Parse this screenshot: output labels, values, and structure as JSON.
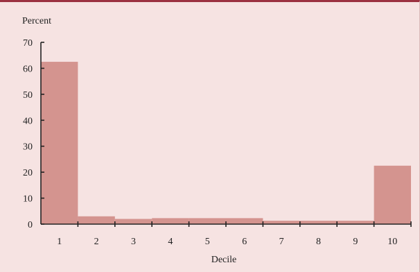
{
  "chart_data": {
    "type": "bar",
    "ylabel": "Percent",
    "xlabel": "Decile",
    "categories": [
      "1",
      "2",
      "3",
      "4",
      "5",
      "6",
      "7",
      "8",
      "9",
      "10"
    ],
    "values": [
      62.5,
      3,
      2,
      2.3,
      2.3,
      2.3,
      1.3,
      1.3,
      1.3,
      22.5
    ],
    "ylim": [
      0,
      70
    ],
    "yticks": [
      "0",
      "10",
      "20",
      "30",
      "40",
      "50",
      "60",
      "70"
    ],
    "bar_color": "#d4948f",
    "background_color": "#f6e3e2",
    "accent_color": "#9b3140",
    "grid": false,
    "legend": "none"
  }
}
